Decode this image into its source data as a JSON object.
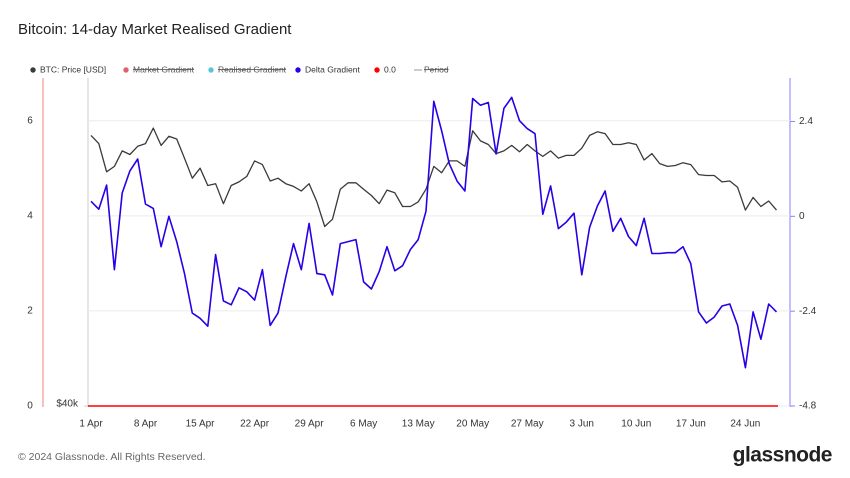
{
  "chart_data": {
    "type": "line",
    "title": "Bitcoin: 14-day Market Realised Gradient",
    "categories": [
      "1 Apr",
      null,
      null,
      null,
      null,
      null,
      null,
      "8 Apr",
      null,
      null,
      null,
      null,
      null,
      null,
      "15 Apr",
      null,
      null,
      null,
      null,
      null,
      null,
      "22 Apr",
      null,
      null,
      null,
      null,
      null,
      null,
      "29 Apr",
      null,
      null,
      null,
      null,
      null,
      null,
      "6 May",
      null,
      null,
      null,
      null,
      null,
      null,
      "13 May",
      null,
      null,
      null,
      null,
      null,
      null,
      "20 May",
      null,
      null,
      null,
      null,
      null,
      null,
      "27 May",
      null,
      null,
      null,
      null,
      null,
      null,
      "3 Jun",
      null,
      null,
      null,
      null,
      null,
      null,
      "10 Jun",
      null,
      null,
      null,
      null,
      null,
      null,
      "17 Jun",
      null,
      null,
      null,
      null,
      null,
      null,
      "24 Jun",
      null,
      null,
      null,
      null
    ],
    "ylim": [
      0,
      6.9
    ],
    "yticks": [
      0,
      2,
      4,
      6
    ],
    "y2lim": [
      -4.8,
      3.5
    ],
    "y2ticks": [
      2.4,
      0,
      -2.4,
      -4.8
    ],
    "y3lim": [
      40000,
      76000
    ],
    "y3ticks": [
      {
        "value": 40000,
        "label": "$40k"
      }
    ],
    "grid": true,
    "series": [
      {
        "name": "BTC: Price [USD]",
        "color": "#3a3a3a",
        "axis": "y3",
        "values": [
          69700,
          68800,
          65700,
          66300,
          68000,
          67600,
          68500,
          68800,
          70500,
          68600,
          69600,
          69300,
          67200,
          65000,
          66100,
          64200,
          64400,
          62200,
          64200,
          64600,
          65200,
          66900,
          66500,
          64700,
          65000,
          64400,
          64100,
          63600,
          64400,
          62400,
          59700,
          60500,
          63800,
          64500,
          64500,
          63800,
          63100,
          62200,
          63700,
          63400,
          61900,
          61900,
          62400,
          63800,
          66300,
          65600,
          66900,
          66900,
          66300,
          70200,
          69100,
          68700,
          67700,
          68000,
          68600,
          67900,
          68700,
          68000,
          67400,
          68000,
          67200,
          67500,
          67500,
          68300,
          69700,
          70100,
          69900,
          68700,
          68700,
          68900,
          68700,
          67000,
          67700,
          66600,
          66300,
          66400,
          66700,
          66500,
          65400,
          65300,
          65300,
          64600,
          64700,
          64000,
          61500,
          62900,
          61900,
          62500,
          61500
        ]
      },
      {
        "name": "Market Gradient",
        "color": "#e0606e",
        "hidden": true
      },
      {
        "name": "Realised Gradient",
        "color": "#5cc6d0",
        "hidden": true
      },
      {
        "name": "Delta Gradient",
        "color": "#2a00e6",
        "axis": "y2",
        "values": [
          0.38,
          0.18,
          0.79,
          -1.35,
          0.59,
          1.15,
          1.45,
          0.31,
          0.2,
          -0.77,
          0,
          -0.64,
          -1.45,
          -2.45,
          -2.58,
          -2.78,
          -0.97,
          -2.14,
          -2.24,
          -1.81,
          -1.91,
          -2.12,
          -1.35,
          -2.76,
          -2.45,
          -1.53,
          -0.69,
          -1.35,
          -0.18,
          -1.45,
          -1.48,
          -1.99,
          -0.69,
          -0.64,
          -0.59,
          -1.66,
          -1.84,
          -1.4,
          -0.77,
          -1.38,
          -1.25,
          -0.84,
          -0.59,
          0.13,
          2.91,
          2.17,
          1.33,
          0.89,
          0.64,
          2.98,
          2.81,
          2.88,
          1.58,
          2.73,
          3.01,
          2.42,
          2.22,
          2.09,
          0.05,
          0.77,
          -0.31,
          -0.15,
          0.08,
          -1.48,
          -0.28,
          0.26,
          0.64,
          -0.38,
          -0.05,
          -0.51,
          -0.74,
          -0.05,
          -0.94,
          -0.94,
          -0.92,
          -0.92,
          -0.77,
          -1.2,
          -2.42,
          -2.7,
          -2.55,
          -2.27,
          -2.22,
          -2.76,
          -3.83,
          -2.42,
          -3.11,
          -2.22,
          -2.42
        ]
      },
      {
        "name": "0.0",
        "color": "#ff0000",
        "value": 0
      },
      {
        "name": "Period",
        "color": "#999999",
        "hidden": true,
        "legend_symbol": "line"
      }
    ]
  },
  "footer": "© 2024 Glassnode. All Rights Reserved.",
  "brand": "glassnode"
}
